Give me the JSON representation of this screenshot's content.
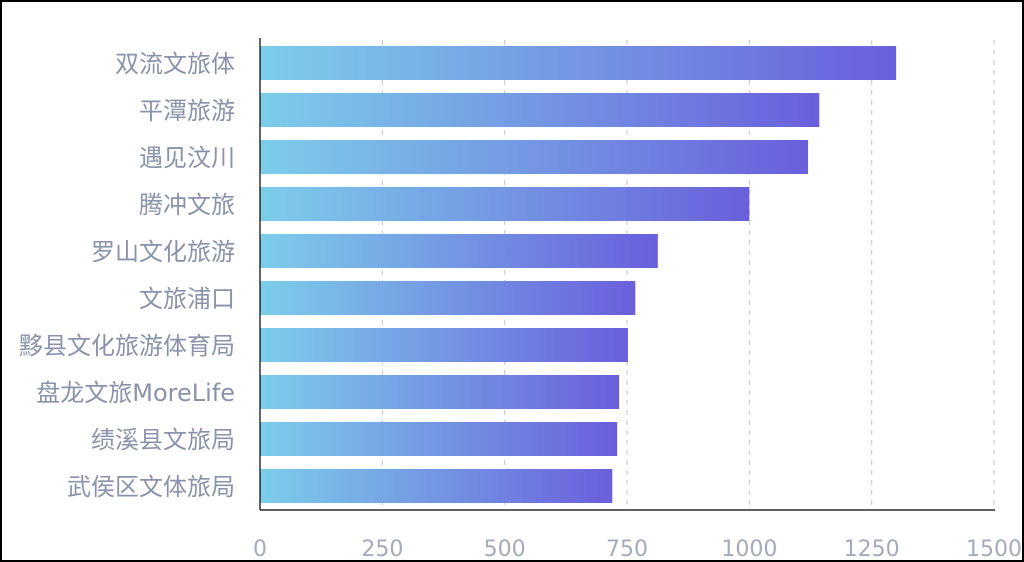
{
  "chart_data": {
    "type": "bar",
    "orientation": "horizontal",
    "title": "",
    "xlabel": "",
    "ylabel": "",
    "categories": [
      "双流文旅体",
      "平潭旅游",
      "遇见汶川",
      "腾冲文旅",
      "罗山文化旅游",
      "文旅浦口",
      "黟县文化旅游体育局",
      "盘龙文旅MoreLife",
      "绩溪县文旅局",
      "武侯区文体旅局"
    ],
    "values": [
      1300,
      1143,
      1120,
      1000,
      813,
      767,
      752,
      734,
      730,
      720
    ],
    "xlim": [
      0,
      1500
    ],
    "xticks": [
      "0",
      "250",
      "500",
      "750",
      "1000",
      "1250",
      "1500"
    ],
    "grid": "vertical-dashed",
    "gradient": {
      "start": "#7dcdea",
      "end": "#6a5fdc"
    }
  }
}
